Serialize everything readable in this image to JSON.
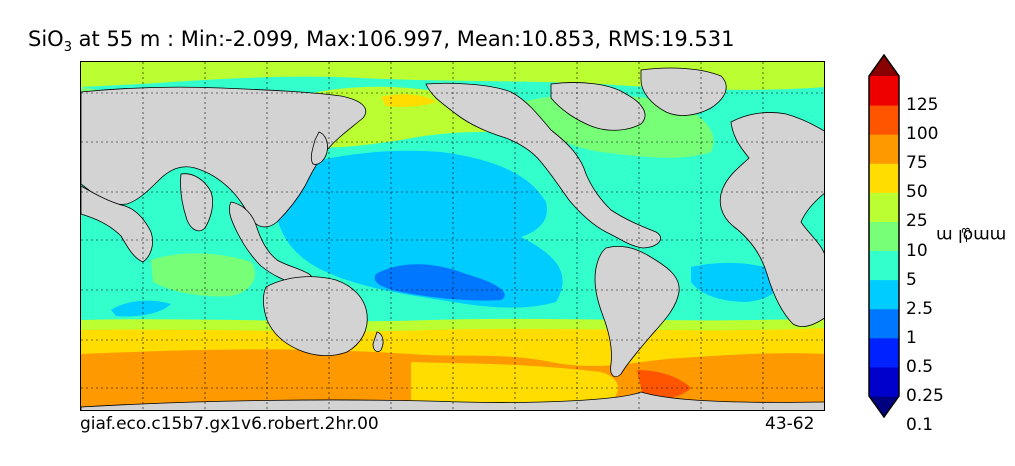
{
  "title": {
    "variable": "SiO",
    "subscript": "3",
    "stats": " at 55 m : Min:-2.099, Max:106.997, Mean:10.853, RMS:19.531"
  },
  "footer": {
    "run_name": "giaf.eco.c15b7.gx1v6.robert.2hr.00",
    "years": "43-62"
  },
  "colorbar": {
    "units_label": "mmol m",
    "units_exponent": "−3",
    "ticks": [
      "125",
      "100",
      "75",
      "50",
      "25",
      "10",
      "5",
      "2.5",
      "1",
      "0.5",
      "0.25",
      "0.1"
    ],
    "colors": [
      "#000080",
      "#0000cc",
      "#0022ff",
      "#0077ff",
      "#00ccff",
      "#33ffcc",
      "#77ff77",
      "#bbff33",
      "#ffdd00",
      "#ff9900",
      "#ff5500",
      "#ee0000",
      "#880000"
    ]
  },
  "map": {
    "projection": "equirectangular",
    "land_color": "#d3d3d3",
    "gridlines": "dashed"
  }
}
